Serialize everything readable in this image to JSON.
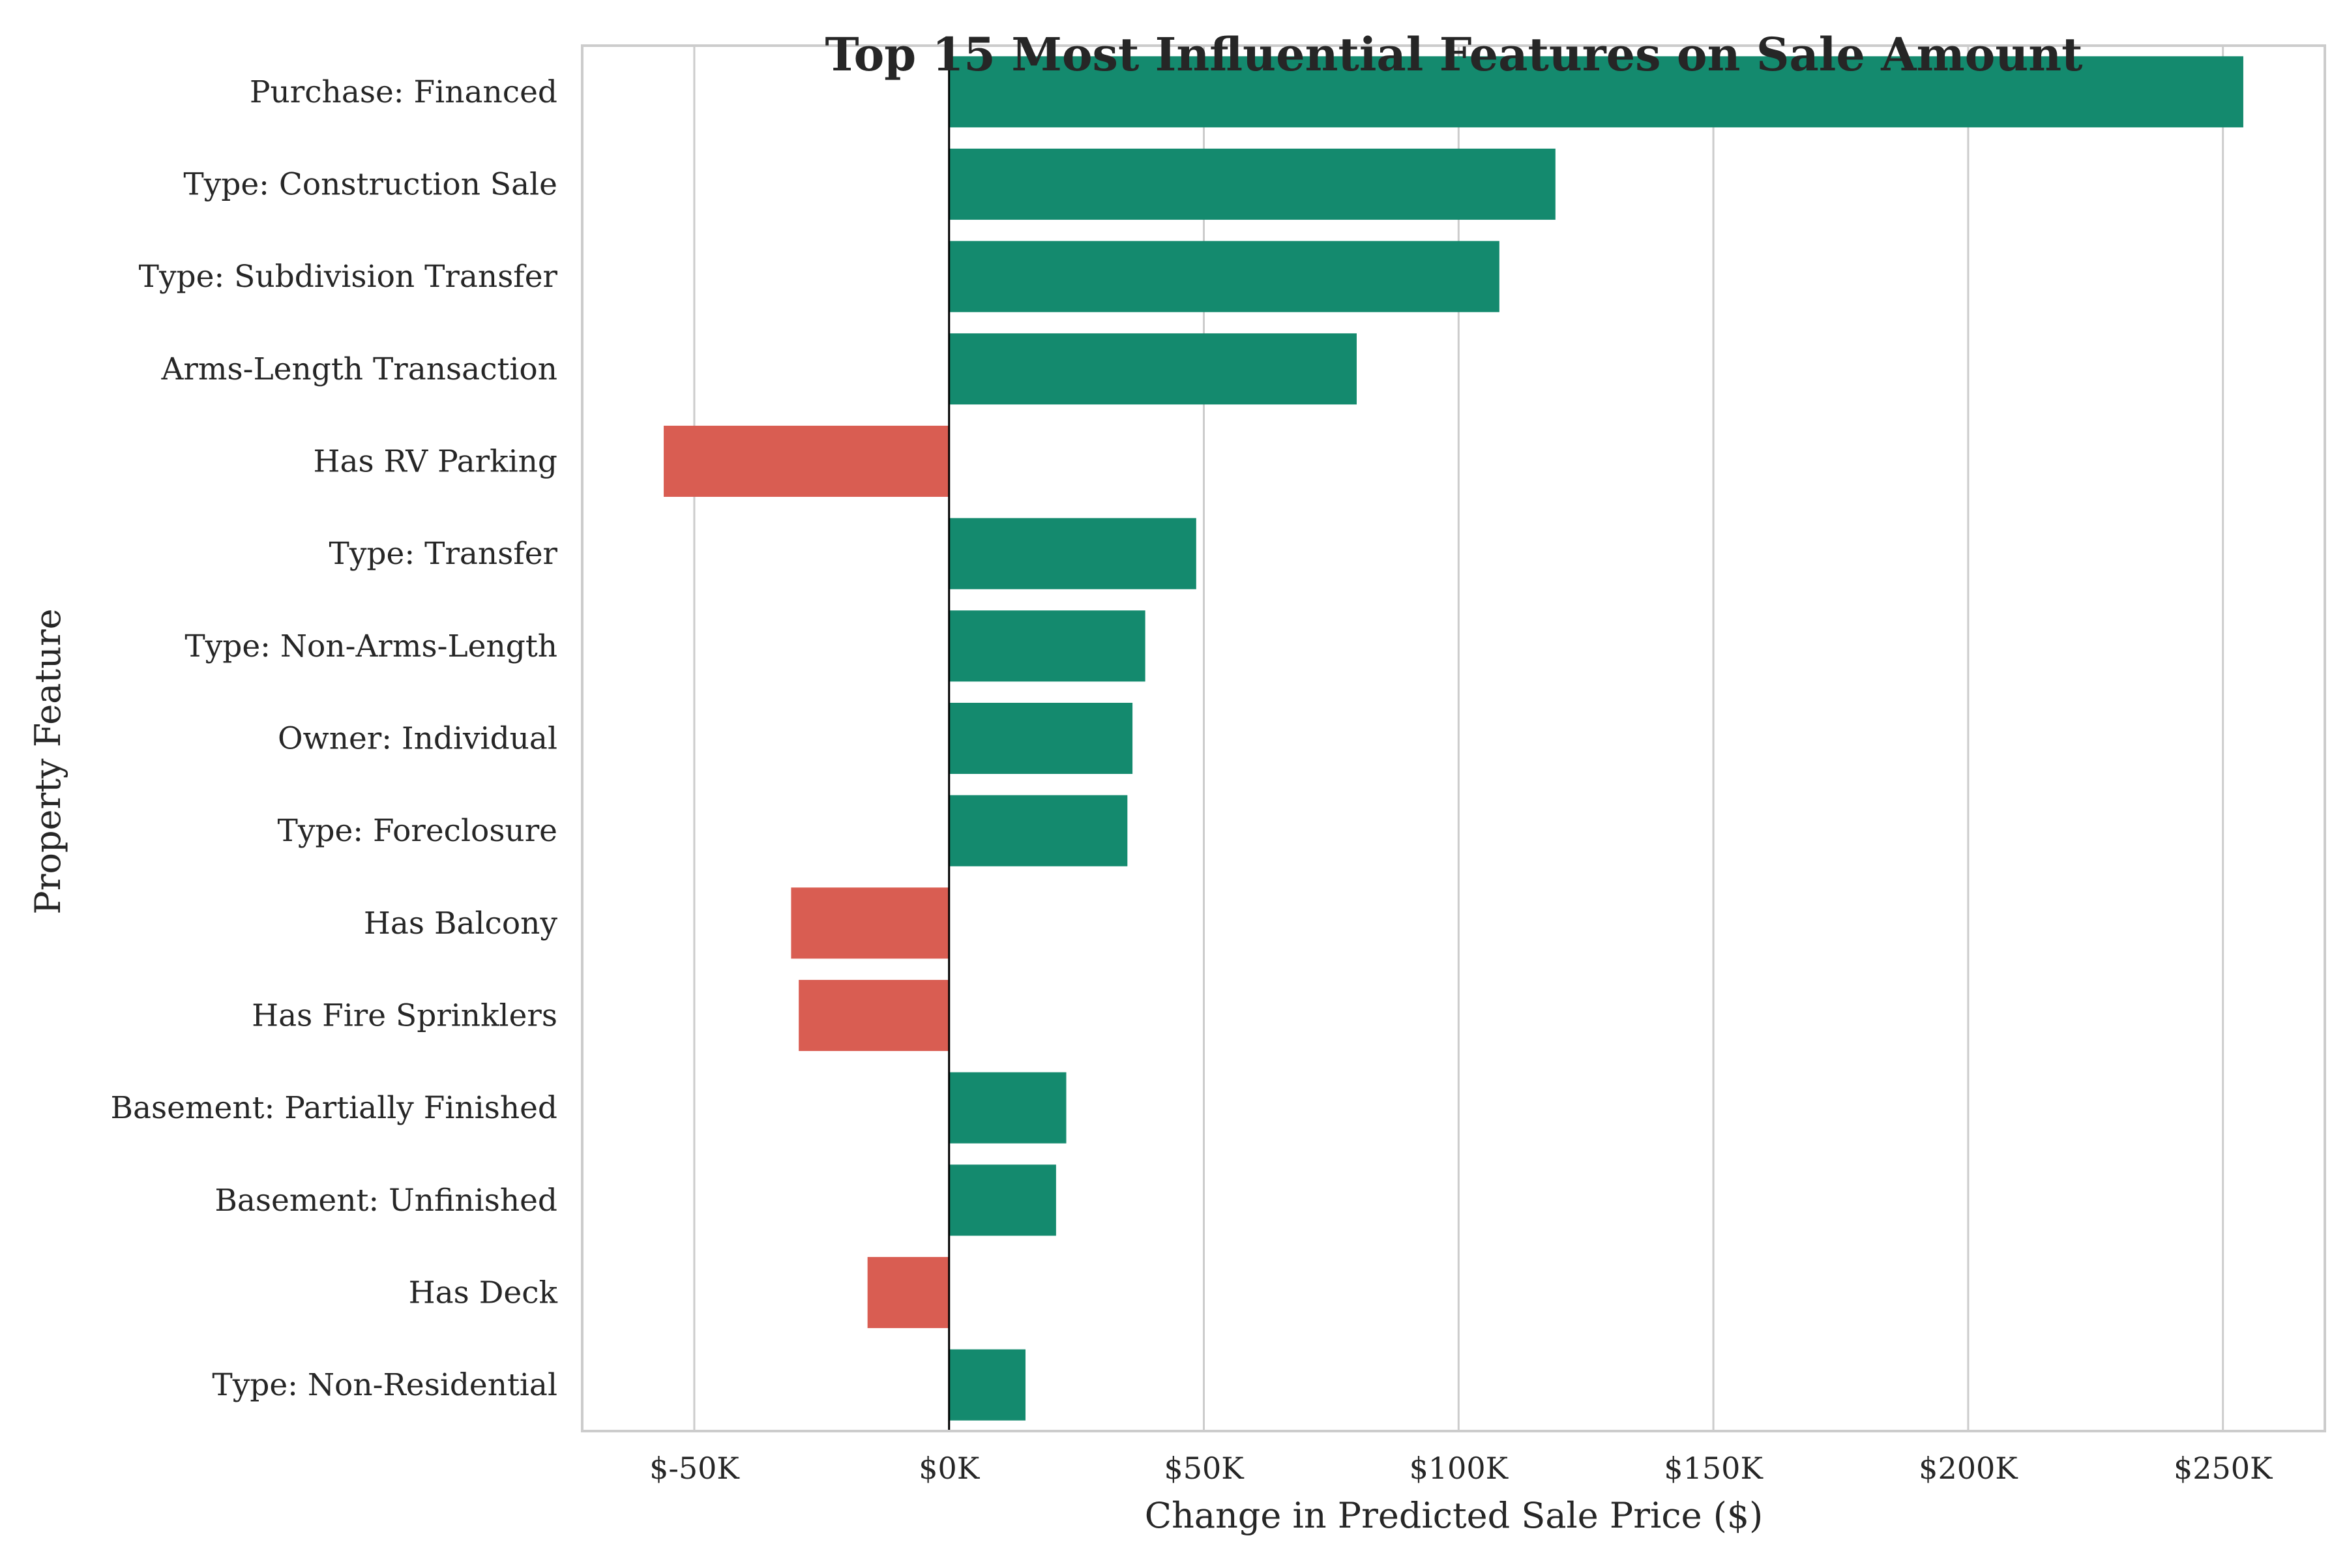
{
  "chart_data": {
    "type": "bar",
    "orientation": "horizontal",
    "title": "Top 15 Most Influential Features on Sale Amount",
    "xlabel": "Change in Predicted Sale Price ($)",
    "ylabel": "Property Feature",
    "xlim": [
      -72000,
      270000
    ],
    "xticks": [
      -50000,
      0,
      50000,
      100000,
      150000,
      200000,
      250000
    ],
    "xtick_labels": [
      "$-50K",
      "$0K",
      "$50K",
      "$100K",
      "$150K",
      "$200K",
      "$250K"
    ],
    "grid": "vertical",
    "colors": {
      "positive": "#148a6e",
      "negative": "#d95d52",
      "zero_line": "#000000",
      "grid": "#cccccc",
      "frame": "#cccccc"
    },
    "categories": [
      "Purchase: Financed",
      "Type: Construction Sale",
      "Type: Subdivision Transfer",
      "Arms-Length Transaction",
      "Has RV Parking",
      "Type: Transfer",
      "Type: Non-Arms-Length",
      "Owner: Individual",
      "Type: Foreclosure",
      "Has Balcony",
      "Has Fire Sprinklers",
      "Basement: Partially Finished",
      "Basement: Unfinished",
      "Has Deck",
      "Type: Non-Residential"
    ],
    "values": [
      254000,
      119000,
      108000,
      80000,
      -56000,
      48500,
      38500,
      36000,
      35000,
      -31000,
      -29500,
      23000,
      21000,
      -16000,
      15000
    ]
  }
}
